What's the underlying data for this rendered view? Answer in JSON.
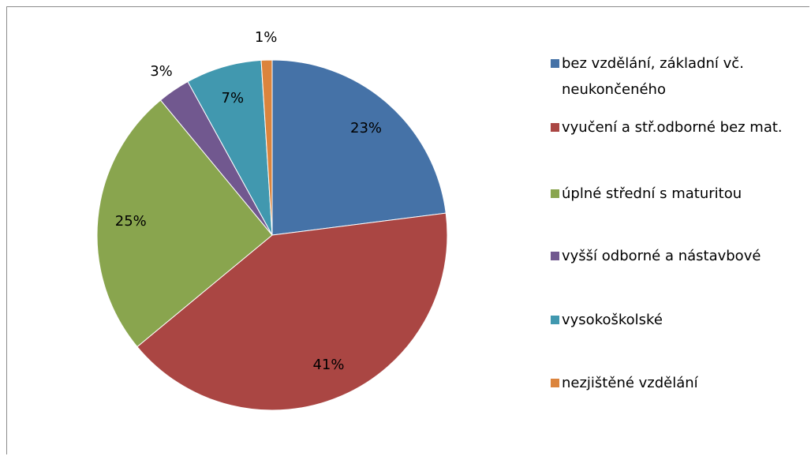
{
  "chart_data": {
    "type": "pie",
    "categories": [
      "bez vzdělání, základní vč. neukončeného",
      "vyučení a stř.odborné bez mat.",
      "úplné střední s maturitou",
      "vyšší odborné a nástavbové",
      "vysokoškolské",
      "nezjištěné vzdělání"
    ],
    "values": [
      23,
      41,
      25,
      3,
      7,
      1
    ],
    "value_labels": [
      "23%",
      "41%",
      "25%",
      "3%",
      "7%",
      "1%"
    ],
    "colors": [
      "#4572a7",
      "#aa4643",
      "#89a54e",
      "#71588f",
      "#4198af",
      "#db843d"
    ],
    "legend": "right"
  }
}
